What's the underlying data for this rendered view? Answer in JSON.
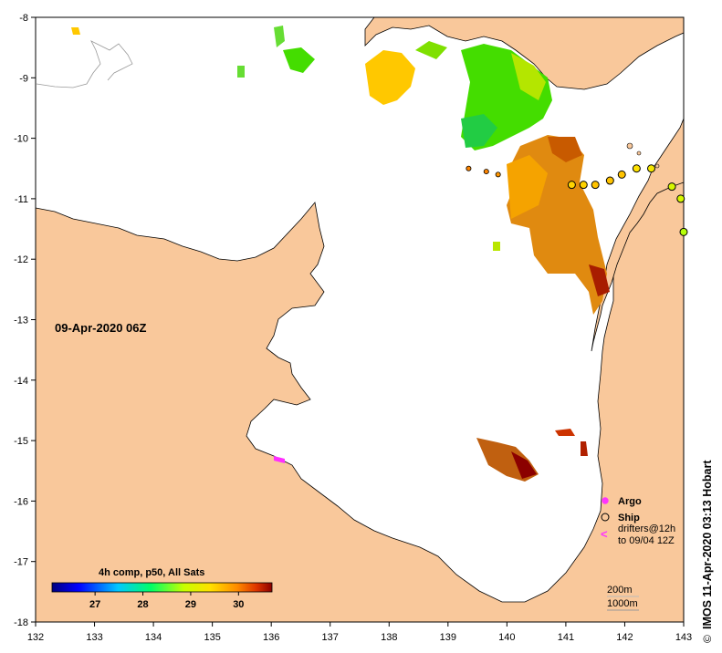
{
  "map": {
    "date_label": "09-Apr-2020 06Z",
    "credit": "IMOS 11-Apr-2020 03:13 Hobart",
    "copyright_symbol": "©",
    "x_ticks": [
      "132",
      "133",
      "134",
      "135",
      "136",
      "137",
      "138",
      "139",
      "140",
      "141",
      "142",
      "143"
    ],
    "y_ticks": [
      "-8",
      "-9",
      "-10",
      "-11",
      "-12",
      "-13",
      "-14",
      "-15",
      "-16",
      "-17",
      "-18"
    ],
    "lon_range": [
      132,
      143
    ],
    "lat_range": [
      -18,
      -8
    ]
  },
  "legend": {
    "argo": "Argo",
    "ship": "Ship",
    "drifters_line1": "drifters@12h",
    "drifters_line2": "to 09/04 12Z",
    "drifter_symbol": "<",
    "contour_200": "200m",
    "contour_1000": "1000m"
  },
  "colorbar": {
    "title": "4h comp, p50, All Sats",
    "ticks": [
      "27",
      "28",
      "29",
      "30"
    ],
    "tick_values": [
      27,
      28,
      29,
      30
    ],
    "range": [
      26.1,
      30.7
    ]
  },
  "colors": {
    "land": "#f9c89b",
    "ocean": "#ffffff",
    "argo": "#ff33ff",
    "drifter": "#ff33ff"
  },
  "ship_positions": [
    {
      "lon": 141.1,
      "lat": -10.77,
      "sst": 29.5
    },
    {
      "lon": 141.3,
      "lat": -10.77,
      "sst": 29.5
    },
    {
      "lon": 141.5,
      "lat": -10.77,
      "sst": 29.6
    },
    {
      "lon": 141.75,
      "lat": -10.7,
      "sst": 29.6
    },
    {
      "lon": 141.95,
      "lat": -10.6,
      "sst": 29.6
    },
    {
      "lon": 142.2,
      "lat": -10.5,
      "sst": 29.4
    },
    {
      "lon": 142.45,
      "lat": -10.5,
      "sst": 29.3
    },
    {
      "lon": 142.8,
      "lat": -10.8,
      "sst": 29.0
    },
    {
      "lon": 142.95,
      "lat": -11.0,
      "sst": 29.0
    },
    {
      "lon": 143.0,
      "lat": -11.55,
      "sst": 28.8
    }
  ],
  "argo_floats": [
    {
      "lon": 139.35,
      "lat": -10.5,
      "sst": 30.0
    },
    {
      "lon": 139.65,
      "lat": -10.55,
      "sst": 30.0
    },
    {
      "lon": 139.85,
      "lat": -10.6,
      "sst": 29.9
    }
  ]
}
